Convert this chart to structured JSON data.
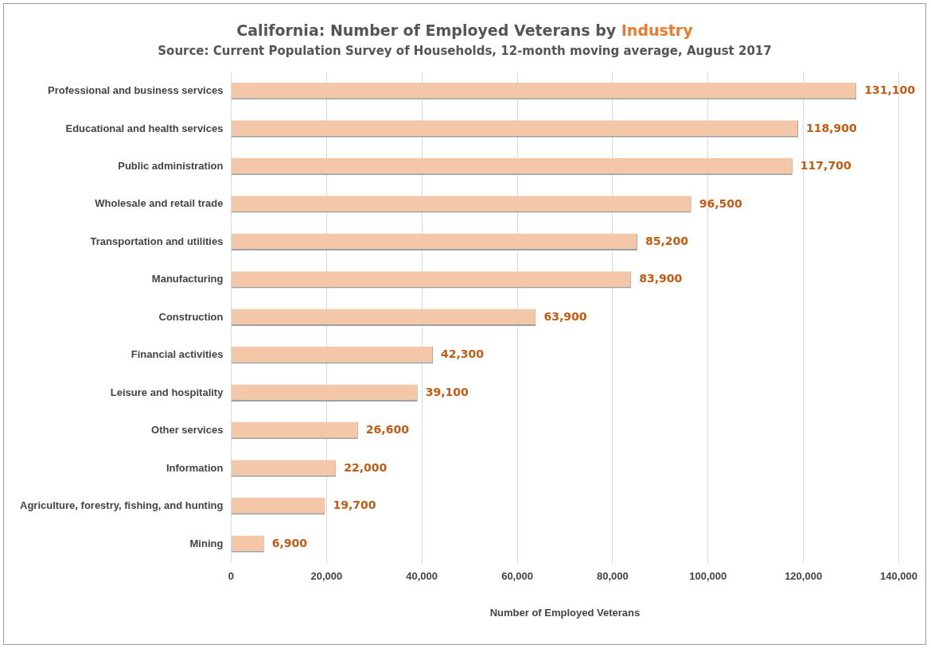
{
  "chart_data": {
    "type": "bar",
    "orientation": "horizontal",
    "title": "California: Number of Employed Veterans by Industry",
    "subtitle": "Source: Current Population Survey of Households, 12-month moving average, August 2017",
    "xlabel": "Number of Employed Veterans",
    "categories": [
      "Professional and business services",
      "Educational and health services",
      "Public administration",
      "Wholesale and retail trade",
      "Transportation and utilities",
      "Manufacturing",
      "Construction",
      "Financial activities",
      "Leisure and hospitality",
      "Other services",
      "Information",
      "Agriculture, forestry, fishing, and hunting",
      "Mining"
    ],
    "values": [
      131100,
      118900,
      117700,
      96500,
      85200,
      83900,
      63900,
      42300,
      39100,
      26600,
      22000,
      19700,
      6900
    ],
    "value_labels": [
      "131,100",
      "118,900",
      "117,700",
      "96,500",
      "85,200",
      "83,900",
      "63,900",
      "42,300",
      "39,100",
      "26,600",
      "22,000",
      "19,700",
      "6,900"
    ],
    "color": "#f4c7a8",
    "xlim": [
      0,
      140000
    ],
    "xticks": [
      0,
      {
        "value": 20000,
        "label": "20,000"
      },
      {
        "value": 40000,
        "label": "40,000"
      },
      {
        "value": 60000,
        "label": "60,000"
      },
      {
        "value": 80000,
        "label": "80,000"
      },
      {
        "value": 100000,
        "label": "100,000"
      },
      {
        "value": 120000,
        "label": "120,000"
      },
      {
        "value": 140000,
        "label": "140,000"
      }
    ],
    "grid": "x",
    "legend": false
  }
}
